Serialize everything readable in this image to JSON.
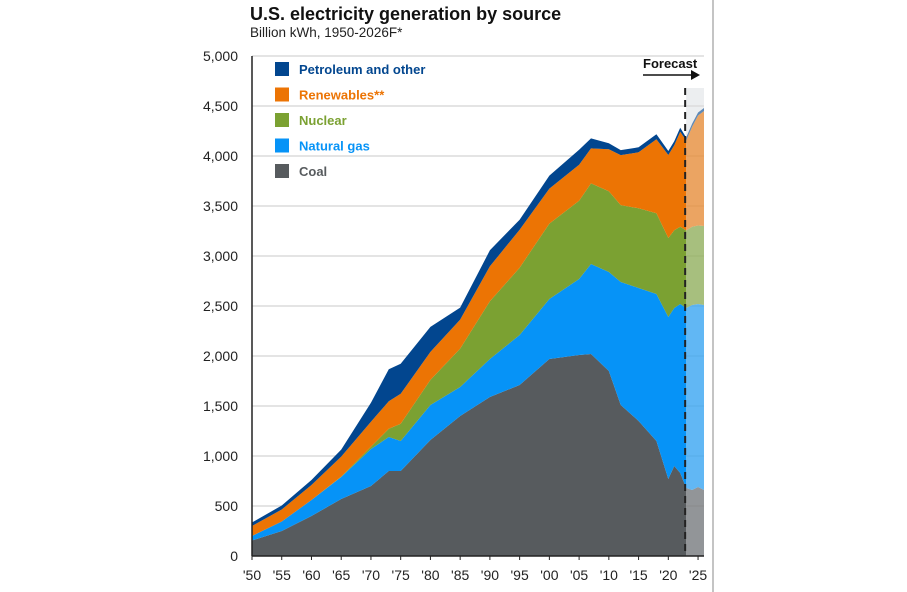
{
  "chart_data": {
    "type": "area",
    "stacked": true,
    "title": "U.S. electricity generation by source",
    "subtitle": "Billion kWh, 1950-2026F*",
    "xlabel": "",
    "ylabel": "",
    "xlim": [
      1950,
      2026
    ],
    "ylim": [
      0,
      5000
    ],
    "grid": true,
    "legend_position": "top-left",
    "forecast_label": "Forecast",
    "forecast_start": 2023,
    "yticks": [
      0,
      500,
      1000,
      1500,
      2000,
      2500,
      3000,
      3500,
      4000,
      4500,
      5000
    ],
    "ytick_labels": [
      "0",
      "500",
      "1,000",
      "1,500",
      "2,000",
      "2,500",
      "3,000",
      "3,500",
      "4,000",
      "4,500",
      "5,000"
    ],
    "xticks": [
      1950,
      1955,
      1960,
      1965,
      1970,
      1975,
      1980,
      1985,
      1990,
      1995,
      2000,
      2005,
      2010,
      2015,
      2020,
      2025
    ],
    "xtick_labels": [
      "'50",
      "'55",
      "'60",
      "'65",
      "'70",
      "'75",
      "'80",
      "'85",
      "'90",
      "'95",
      "'00",
      "'05",
      "'10",
      "'15",
      "'20",
      "'25"
    ],
    "x": [
      1950,
      1955,
      1960,
      1965,
      1970,
      1973,
      1975,
      1980,
      1985,
      1990,
      1995,
      2000,
      2005,
      2007,
      2010,
      2012,
      2015,
      2018,
      2020,
      2021,
      2022,
      2023,
      2024,
      2025,
      2026
    ],
    "series": [
      {
        "name": "Coal",
        "color": "#575b5e",
        "values": [
          155,
          250,
          400,
          570,
          700,
          850,
          850,
          1160,
          1400,
          1590,
          1710,
          1970,
          2010,
          2020,
          1850,
          1510,
          1350,
          1150,
          770,
          900,
          830,
          680,
          660,
          690,
          660
        ]
      },
      {
        "name": "Natural gas",
        "color": "#0693f7",
        "values": [
          45,
          95,
          160,
          220,
          370,
          340,
          300,
          350,
          290,
          380,
          500,
          600,
          760,
          900,
          990,
          1230,
          1330,
          1470,
          1620,
          1580,
          1690,
          1800,
          1850,
          1830,
          1850
        ]
      },
      {
        "name": "Nuclear",
        "color": "#7ba132",
        "values": [
          0,
          0,
          0,
          4,
          22,
          83,
          172,
          251,
          384,
          577,
          673,
          754,
          782,
          806,
          807,
          769,
          797,
          807,
          790,
          778,
          772,
          775,
          782,
          785,
          790
        ]
      },
      {
        "name": "Renewables**",
        "color": "#ec7404",
        "values": [
          100,
          120,
          150,
          200,
          250,
          275,
          300,
          280,
          290,
          350,
          380,
          350,
          360,
          350,
          420,
          500,
          560,
          740,
          830,
          850,
          950,
          900,
          1000,
          1100,
          1150
        ]
      },
      {
        "name": "Petroleum and other",
        "color": "#02468f",
        "values": [
          35,
          40,
          50,
          70,
          190,
          320,
          300,
          250,
          120,
          160,
          100,
          130,
          150,
          100,
          60,
          50,
          50,
          50,
          40,
          40,
          40,
          30,
          30,
          30,
          30
        ]
      }
    ]
  }
}
